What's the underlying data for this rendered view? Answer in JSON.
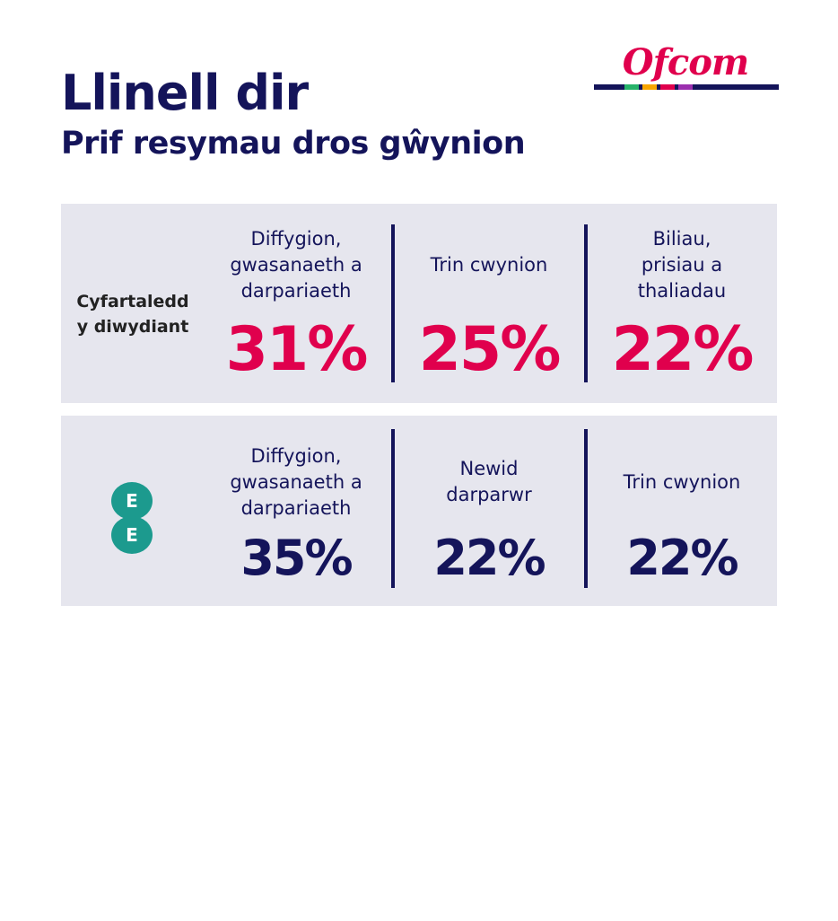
{
  "header": {
    "title": "Llinell dir",
    "subtitle": "Prif resymau dros gŵynion",
    "logo": "Ofcom"
  },
  "rows": [
    {
      "label": "Cyfartaledd\ny diwydiant",
      "items": [
        {
          "label": "Diffygion,\ngwasanaeth a\ndarpariaeth",
          "value": "31%"
        },
        {
          "label": "Trin cwynion",
          "value": "25%"
        },
        {
          "label": "Biliau,\nprisiau a\nthaliadau",
          "value": "22%"
        }
      ]
    },
    {
      "logo": [
        "E",
        "E"
      ],
      "items": [
        {
          "label": "Diffygion,\ngwasanaeth a\ndarpariaeth",
          "value": "35%"
        },
        {
          "label": "Newid\ndarparwr",
          "value": "22%"
        },
        {
          "label": "Trin cwynion",
          "value": "22%"
        }
      ]
    }
  ]
}
